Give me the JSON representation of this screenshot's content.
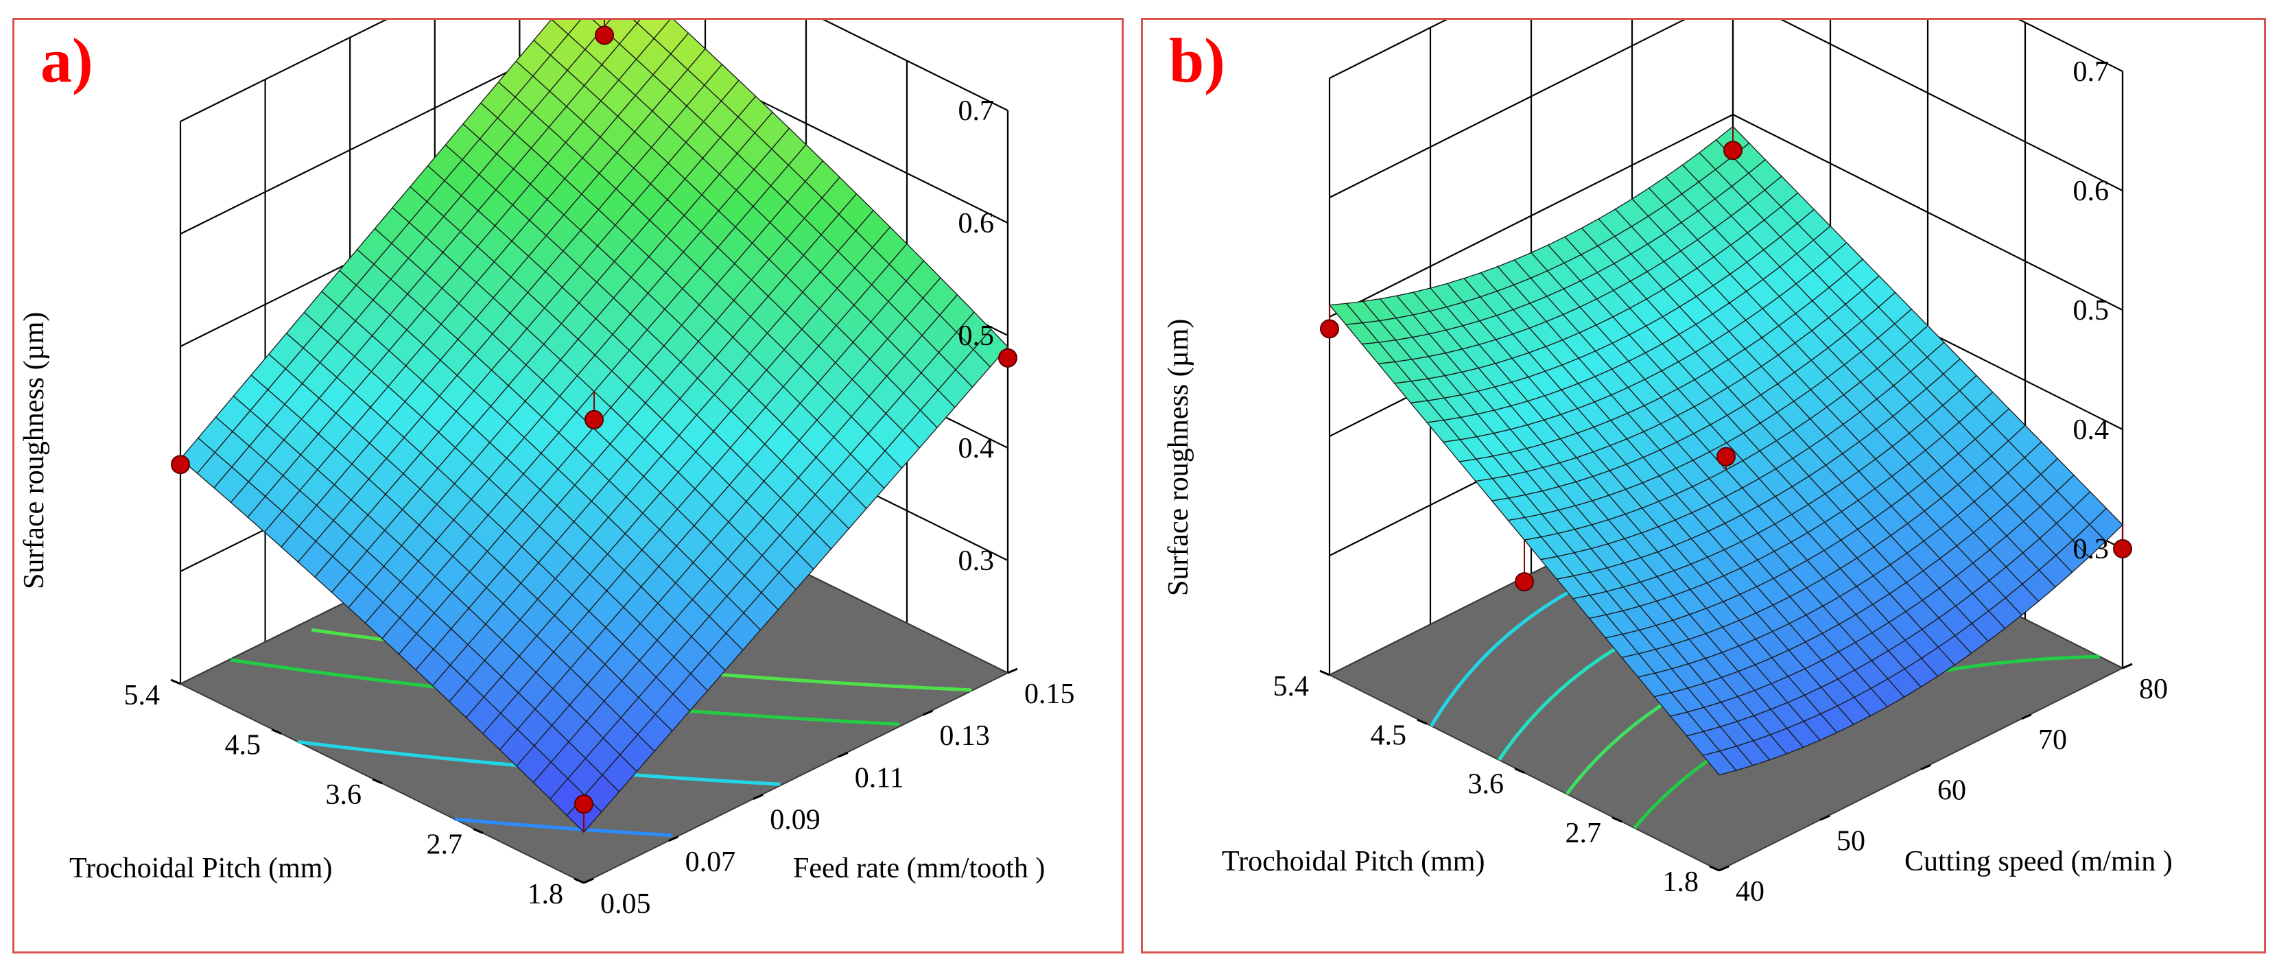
{
  "chart_data": [
    {
      "type": "surface3d",
      "panel_label": "a)",
      "zlabel": "Surface roughness (µm)",
      "xlabel": "Trochoidal Pitch  (mm)",
      "ylabel": "Feed rate  (mm/tooth )",
      "x_ticks": [
        "5.4",
        "4.5",
        "3.6",
        "2.7",
        "1.8"
      ],
      "y_ticks": [
        "0.05",
        "0.07",
        "0.09",
        "0.11",
        "0.13",
        "0.15"
      ],
      "z_ticks": [
        "0.3",
        "0.4",
        "0.5",
        "0.6",
        "0.7"
      ],
      "xlim": [
        1.8,
        5.4
      ],
      "ylim": [
        0.05,
        0.15
      ],
      "zlim": [
        0.2,
        0.7
      ],
      "surface_corners": {
        "pitch_1.8_feed_0.05": 0.245,
        "pitch_5.4_feed_0.05": 0.4,
        "pitch_1.8_feed_0.15": 0.49,
        "pitch_5.4_feed_0.15": 0.66
      },
      "design_points": [
        {
          "pitch": 5.4,
          "feed": 0.05,
          "roughness": 0.395
        },
        {
          "pitch": 1.8,
          "feed": 0.05,
          "roughness": 0.27
        },
        {
          "pitch": 3.6,
          "feed": 0.1,
          "roughness": 0.43
        },
        {
          "pitch": 5.4,
          "feed": 0.15,
          "roughness": 0.59
        },
        {
          "pitch": 1.8,
          "feed": 0.15,
          "roughness": 0.48
        }
      ],
      "contour_colors": [
        "#2a8cff",
        "#22d6e6",
        "#22cc44",
        "#4fe04a"
      ]
    },
    {
      "type": "surface3d",
      "panel_label": "b)",
      "zlabel": "Surface roughness (µm)",
      "xlabel": "Trochoidal Pitch  (mm)",
      "ylabel": "Cutting speed  (m/min )",
      "x_ticks": [
        "5.4",
        "4.5",
        "3.6",
        "2.7",
        "1.8"
      ],
      "y_ticks": [
        "40",
        "50",
        "60",
        "70",
        "80"
      ],
      "z_ticks": [
        "0.3",
        "0.4",
        "0.5",
        "0.6",
        "0.7"
      ],
      "xlim": [
        1.8,
        5.4
      ],
      "ylim": [
        40,
        80
      ],
      "zlim": [
        0.2,
        0.7
      ],
      "surface_corners": {
        "pitch_1.8_speed_40": 0.27,
        "pitch_5.4_speed_40": 0.5,
        "pitch_1.8_speed_80": 0.31,
        "pitch_5.4_speed_80": 0.48
      },
      "design_points": [
        {
          "pitch": 5.4,
          "speed": 40,
          "roughness": 0.49
        },
        {
          "pitch": 3.6,
          "speed": 40,
          "roughness": 0.36
        },
        {
          "pitch": 3.6,
          "speed": 60,
          "roughness": 0.38
        },
        {
          "pitch": 5.4,
          "speed": 80,
          "roughness": 0.47
        },
        {
          "pitch": 1.8,
          "speed": 80,
          "roughness": 0.3
        }
      ],
      "contour_colors": [
        "#22cc44",
        "#3ee060",
        "#22e0c0",
        "#22d6e6"
      ]
    }
  ]
}
